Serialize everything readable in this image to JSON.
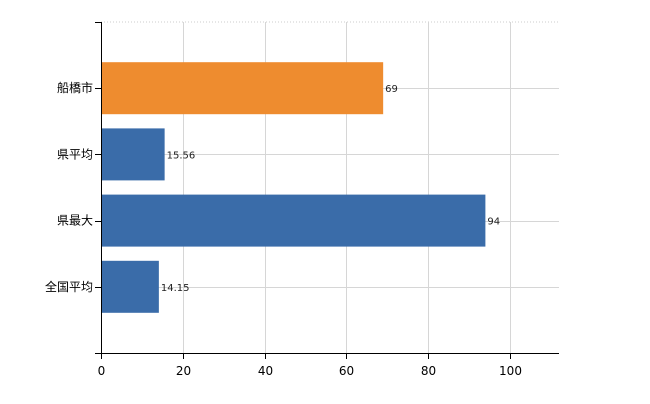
{
  "chart_data": {
    "type": "bar",
    "orientation": "horizontal",
    "title": "",
    "xlabel": "",
    "ylabel": "",
    "categories": [
      "船橋市",
      "県平均",
      "県最大",
      "全国平均"
    ],
    "values": [
      69,
      15.56,
      94,
      14.15
    ],
    "value_labels": [
      "69",
      "15.56",
      "94",
      "14.15"
    ],
    "bar_colors": [
      "#ee8c2f",
      "#3a6ca9",
      "#3a6ca9",
      "#3a6ca9"
    ],
    "xlim": [
      0,
      112
    ],
    "x_ticks": [
      0,
      20,
      40,
      60,
      80,
      100
    ],
    "x_tick_labels": [
      "0",
      "20",
      "40",
      "60",
      "80",
      "100"
    ],
    "grid": true,
    "legend": "none"
  }
}
